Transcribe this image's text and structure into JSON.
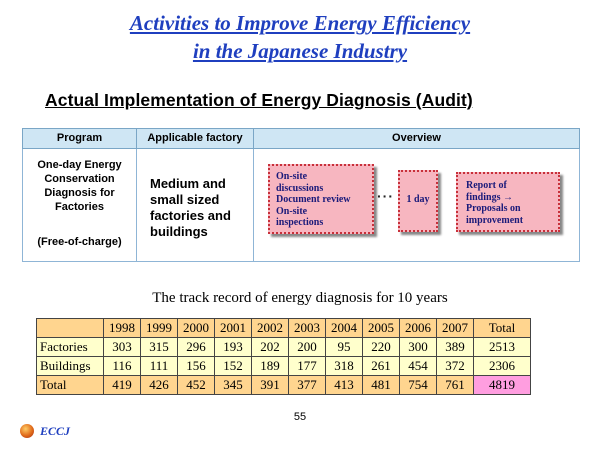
{
  "header": {
    "title_line1": "Activities to Improve Energy Efficiency",
    "title_line2": "in the Japanese Industry",
    "subtitle": "Actual Implementation of Energy Diagnosis (Audit)"
  },
  "program_table": {
    "headers": [
      "Program",
      "Applicable factory",
      "Overview"
    ],
    "program_lines": [
      "One-day Energy",
      "Conservation",
      "Diagnosis for",
      "Factories"
    ],
    "program_note": "(Free-of-charge)",
    "factory_lines": [
      "Medium and",
      "small sized",
      "factories and",
      "buildings"
    ],
    "overview": {
      "step1_lines": [
        "On-site",
        "discussions",
        "Document review",
        "On-site",
        "inspections"
      ],
      "step2": "1 day",
      "step3_lines": [
        "Report of",
        "findings →",
        "Proposals on",
        "improvement"
      ],
      "connector": "···"
    }
  },
  "track_record": {
    "title": "The track record of energy diagnosis for 10 years",
    "columns": [
      "1998",
      "1999",
      "2000",
      "2001",
      "2002",
      "2003",
      "2004",
      "2005",
      "2006",
      "2007",
      "Total"
    ],
    "rows": [
      {
        "label": "Factories",
        "values": [
          "303",
          "315",
          "296",
          "193",
          "202",
          "200",
          "95",
          "220",
          "300",
          "389",
          "2513"
        ]
      },
      {
        "label": "Buildings",
        "values": [
          "116",
          "111",
          "156",
          "152",
          "189",
          "177",
          "318",
          "261",
          "454",
          "372",
          "2306"
        ]
      },
      {
        "label": "Total",
        "values": [
          "419",
          "426",
          "452",
          "345",
          "391",
          "377",
          "413",
          "481",
          "754",
          "761",
          "4819"
        ]
      }
    ]
  },
  "footer": {
    "page_number": "55",
    "logo_text": "ECCJ",
    "logo_icon": "eccj-logo-icon"
  },
  "colors": {
    "title": "#1f3fbf",
    "table_header": "#ffd58f",
    "table_body": "#ffffcc",
    "grand_total": "#ff9ee0",
    "flow_box": "#f7b6c0"
  }
}
